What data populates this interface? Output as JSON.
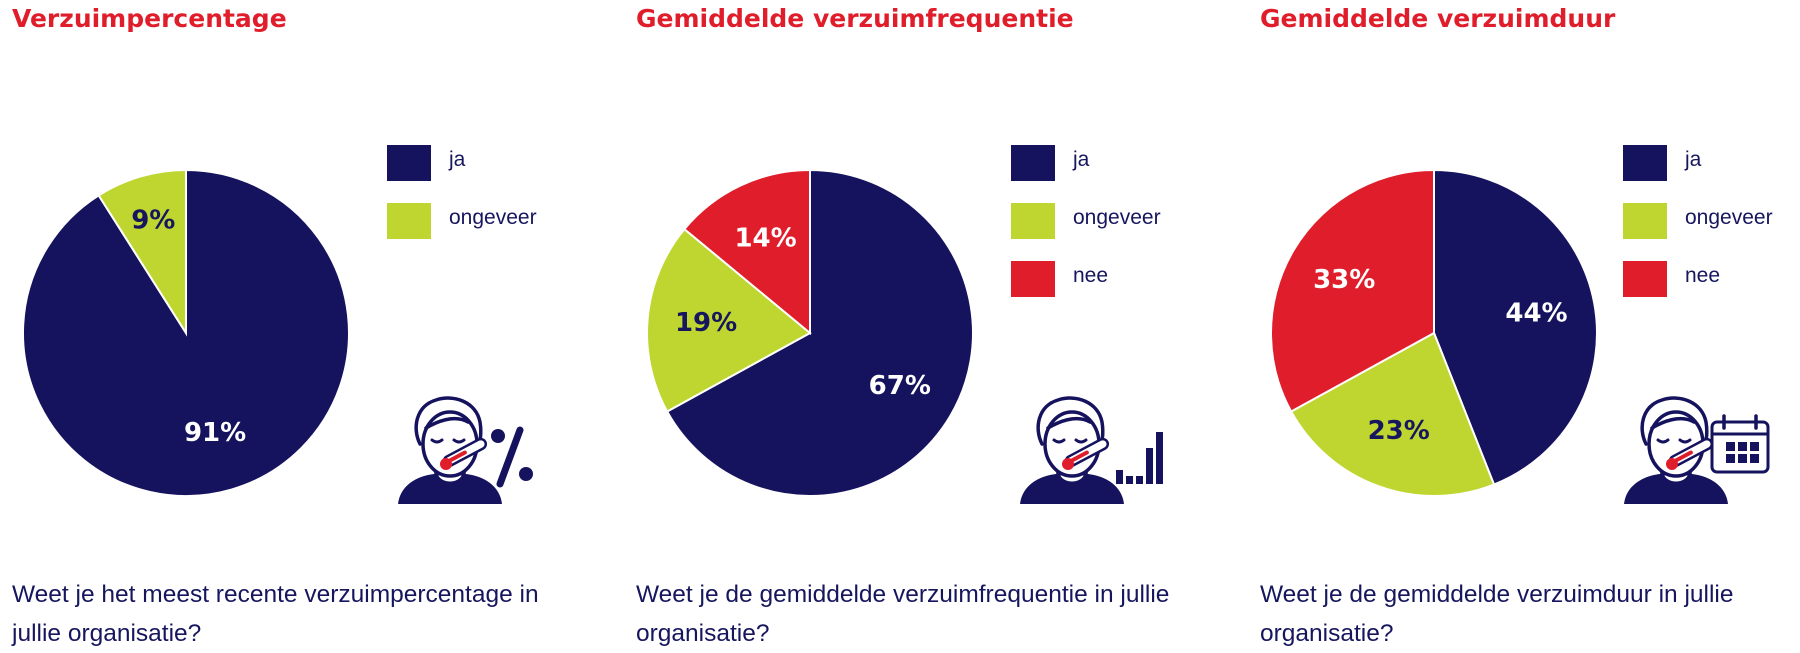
{
  "colors": {
    "ja": "#16135e",
    "ongeveer": "#bfd630",
    "nee": "#e01e2b",
    "text": "#16165e",
    "title": "#e01e2b"
  },
  "chart_data": [
    {
      "type": "pie",
      "title": "Verzuimpercentage",
      "categories": [
        "ja",
        "ongeveer"
      ],
      "values": [
        91,
        9
      ],
      "labels": [
        "91%",
        "9%"
      ],
      "legend": [
        "ja",
        "ongeveer"
      ],
      "legend_position": "right",
      "question": "Weet je het meest recente verzuimpercentage in jullie organisatie?",
      "icon": "person-thermometer-percent-icon"
    },
    {
      "type": "pie",
      "title": "Gemiddelde verzuimfrequentie",
      "categories": [
        "ja",
        "ongeveer",
        "nee"
      ],
      "values": [
        67,
        19,
        14
      ],
      "labels": [
        "67%",
        "19%",
        "14%"
      ],
      "legend": [
        "ja",
        "ongeveer",
        "nee"
      ],
      "legend_position": "right",
      "question": "Weet je de gemiddelde verzuimfrequentie in jullie organisatie?",
      "icon": "person-thermometer-barchart-icon"
    },
    {
      "type": "pie",
      "title": "Gemiddelde verzuimduur",
      "categories": [
        "ja",
        "ongeveer",
        "nee"
      ],
      "values": [
        44,
        23,
        33
      ],
      "labels": [
        "44%",
        "23%",
        "33%"
      ],
      "legend": [
        "ja",
        "ongeveer",
        "nee"
      ],
      "legend_position": "right",
      "question": "Weet je de gemiddelde verzuimduur in jullie organisatie?",
      "icon": "person-thermometer-calendar-icon"
    }
  ]
}
